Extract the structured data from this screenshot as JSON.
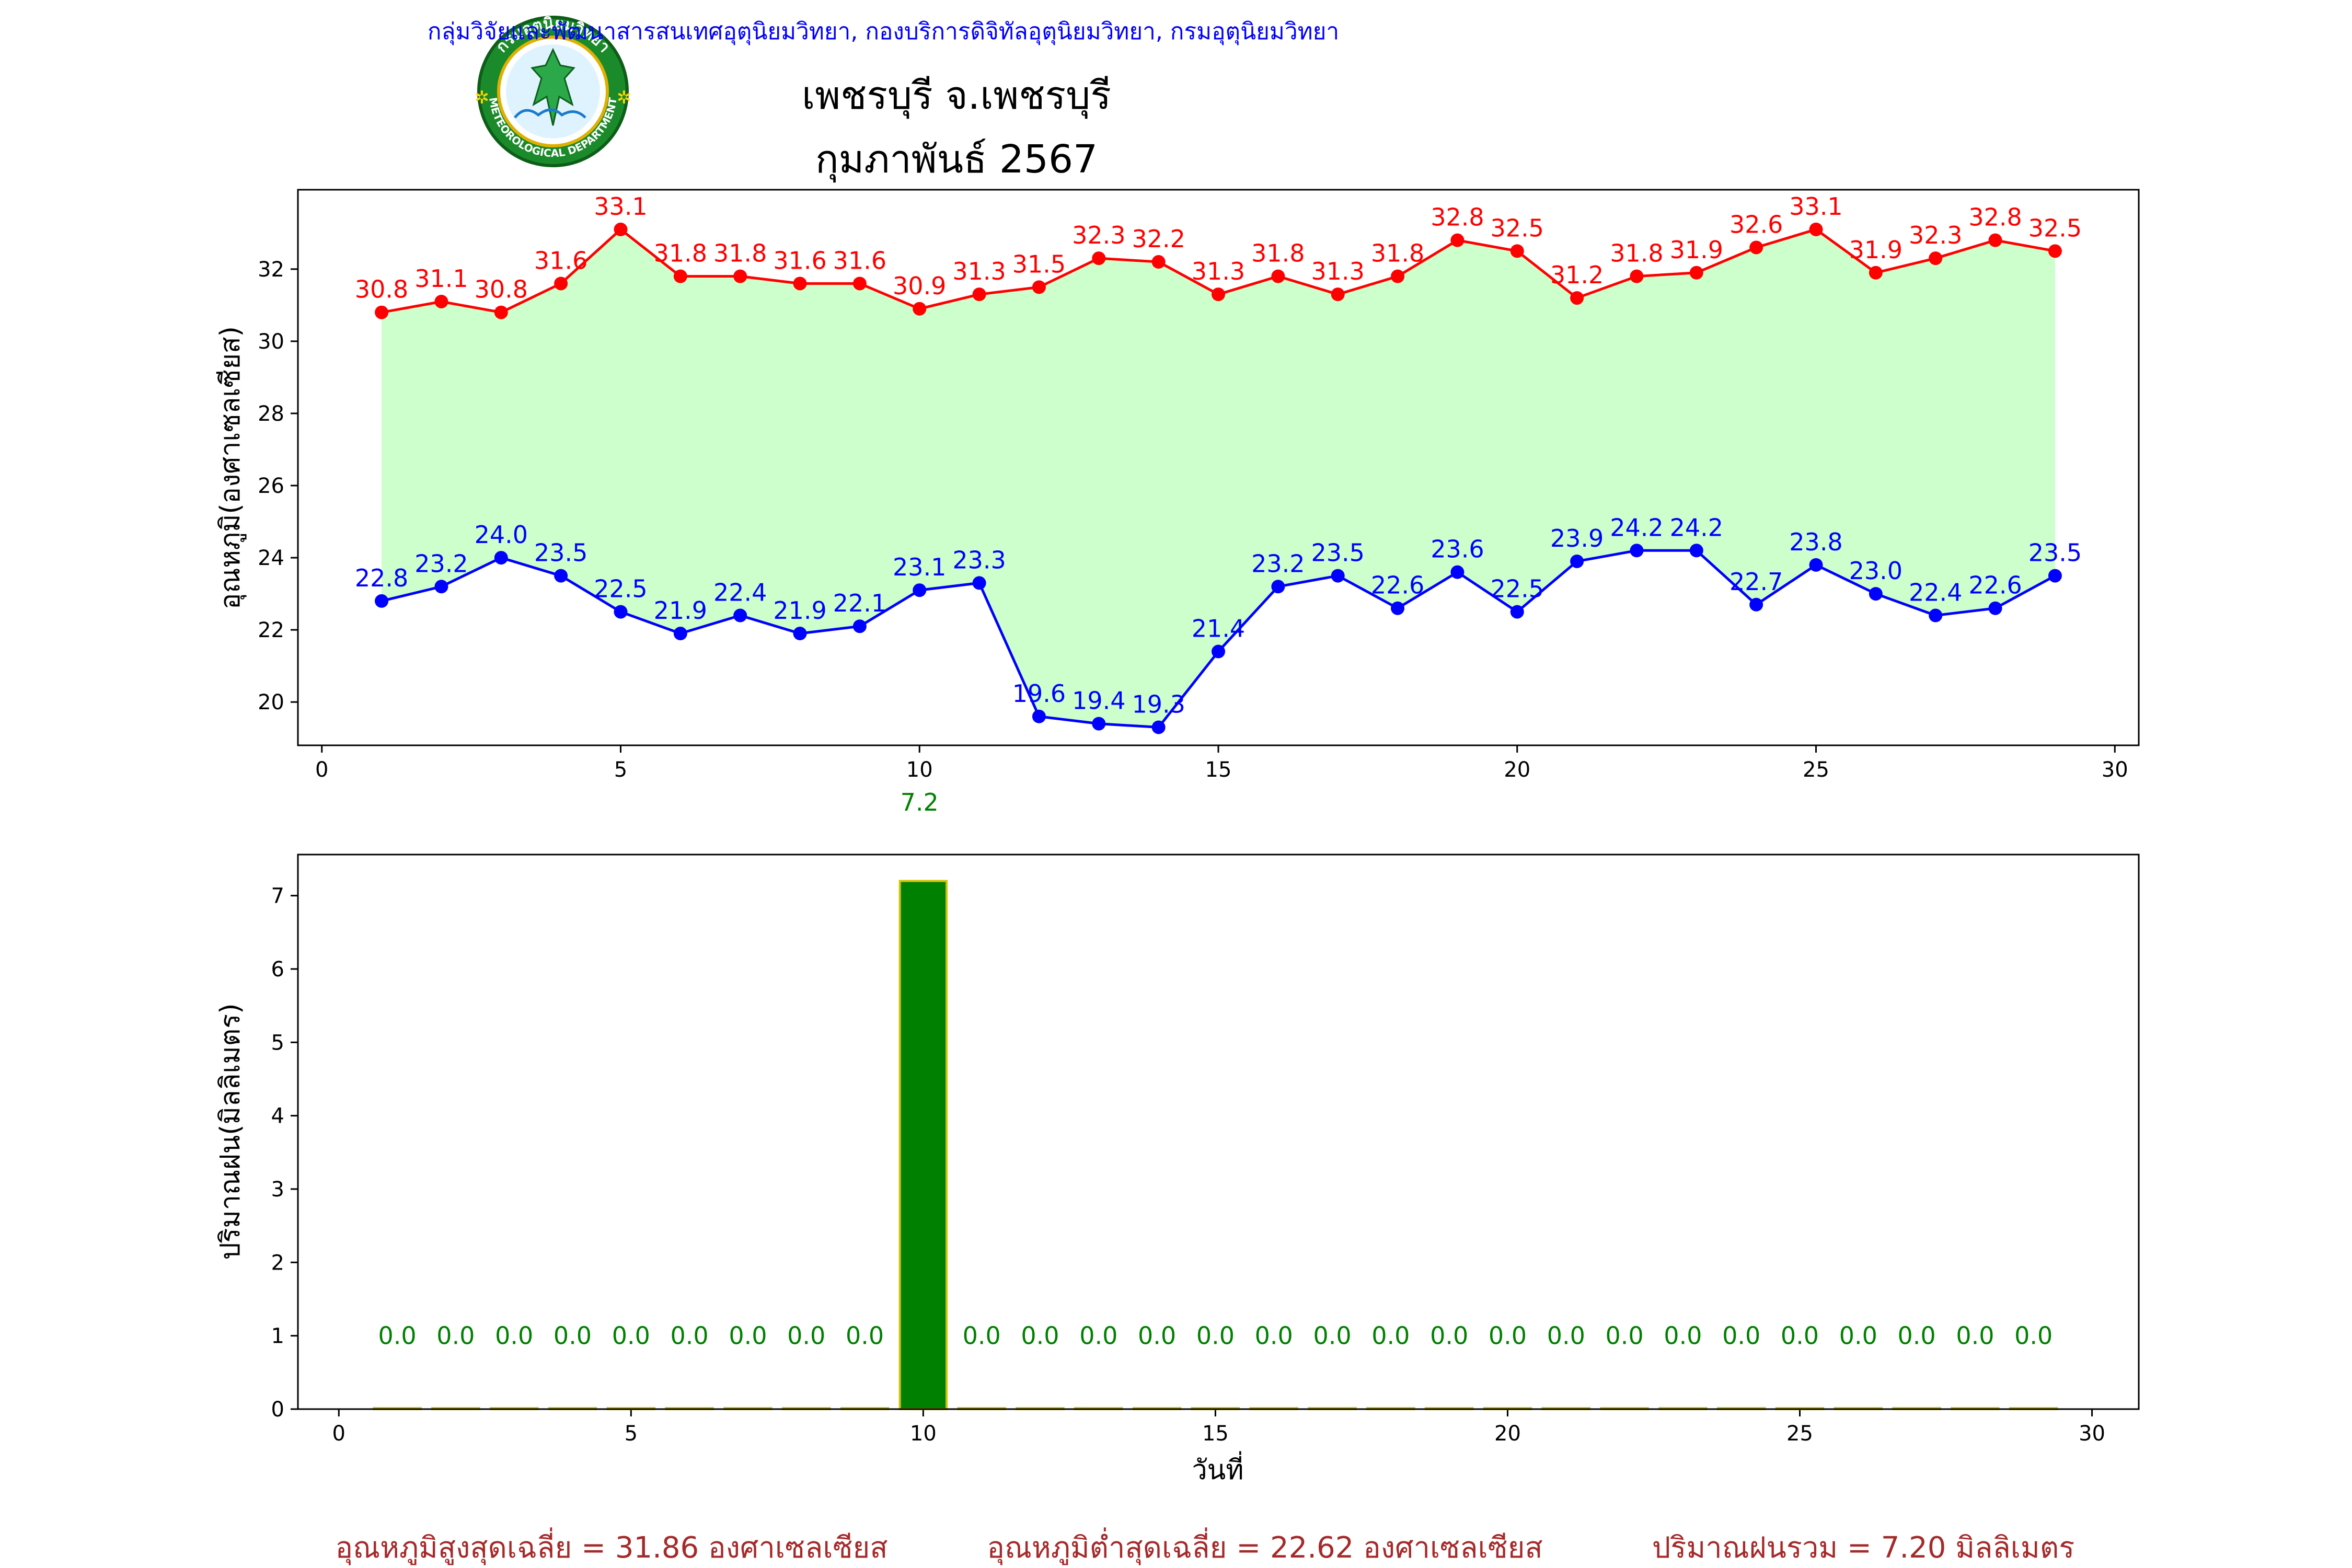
{
  "header": {
    "agency": "กลุ่มวิจัยและพัฒนาสารสนเทศอุตุนิยมวิทยา, กองบริการดิจิทัลอุตุนิยมวิทยา, กรมอุตุนิยมวิทยา",
    "station": "เพชรบุรี จ.เพชรบุรี",
    "period": "กุมภาพันธ์ 2567",
    "logo_top_text": "กรมอุตุนิยมวิทยา",
    "logo_bottom_text": "METEOROLOGICAL DEPARTMENT"
  },
  "colors": {
    "max_line": "#ff0000",
    "min_line": "#0000ff",
    "band_fill": "#ccffcc",
    "rain_bar": "#008000",
    "rain_bar_edge": "#d4c400",
    "rain_label": "#008000",
    "summary": "#a52a2a",
    "agency": "#0000ff"
  },
  "chart_data": [
    {
      "type": "line",
      "ylabel": "อุณหภูมิ(องศาเซลเซียส)",
      "xlim": [
        -0.4,
        30.4
      ],
      "ylim": [
        18.8,
        34.2
      ],
      "xticks": [
        0,
        5,
        10,
        15,
        20,
        25,
        30
      ],
      "yticks": [
        20,
        22,
        24,
        26,
        28,
        30,
        32
      ],
      "x": [
        1,
        2,
        3,
        4,
        5,
        6,
        7,
        8,
        9,
        10,
        11,
        12,
        13,
        14,
        15,
        16,
        17,
        18,
        19,
        20,
        21,
        22,
        23,
        24,
        25,
        26,
        27,
        28,
        29
      ],
      "series": [
        {
          "key": "max",
          "values": [
            30.8,
            31.1,
            30.8,
            31.6,
            33.1,
            31.8,
            31.8,
            31.6,
            31.6,
            30.9,
            31.3,
            31.5,
            32.3,
            32.2,
            31.3,
            31.8,
            31.3,
            31.8,
            32.8,
            32.5,
            31.2,
            31.8,
            31.9,
            32.6,
            33.1,
            31.9,
            32.3,
            32.8,
            32.5
          ]
        },
        {
          "key": "min",
          "values": [
            22.8,
            23.2,
            24.0,
            23.5,
            22.5,
            21.9,
            22.4,
            21.9,
            22.1,
            23.1,
            23.3,
            19.6,
            19.4,
            19.3,
            21.4,
            23.2,
            23.5,
            22.6,
            23.6,
            22.5,
            23.9,
            24.2,
            24.2,
            22.7,
            23.8,
            23.0,
            22.4,
            22.6,
            23.5
          ]
        }
      ],
      "annotations": [
        {
          "x": 10,
          "text": "7.2"
        }
      ]
    },
    {
      "type": "bar",
      "ylabel": "ปริมาณฝน(มิลลิเมตร)",
      "xlabel": "วันที่",
      "xlim": [
        -0.7,
        30.8
      ],
      "ylim": [
        0,
        7.56
      ],
      "xticks": [
        0,
        5,
        10,
        15,
        20,
        25,
        30
      ],
      "yticks": [
        0,
        1,
        2,
        3,
        4,
        5,
        6,
        7
      ],
      "x": [
        1,
        2,
        3,
        4,
        5,
        6,
        7,
        8,
        9,
        10,
        11,
        12,
        13,
        14,
        15,
        16,
        17,
        18,
        19,
        20,
        21,
        22,
        23,
        24,
        25,
        26,
        27,
        28,
        29
      ],
      "values": [
        0,
        0,
        0,
        0,
        0,
        0,
        0,
        0,
        0,
        7.2,
        0,
        0,
        0,
        0,
        0,
        0,
        0,
        0,
        0,
        0,
        0,
        0,
        0,
        0,
        0,
        0,
        0,
        0,
        0
      ],
      "bar_labels": [
        "0.0",
        "0.0",
        "0.0",
        "0.0",
        "0.0",
        "0.0",
        "0.0",
        "0.0",
        "0.0",
        "",
        "0.0",
        "0.0",
        "0.0",
        "0.0",
        "0.0",
        "0.0",
        "0.0",
        "0.0",
        "0.0",
        "0.0",
        "0.0",
        "0.0",
        "0.0",
        "0.0",
        "0.0",
        "0.0",
        "0.0",
        "0.0",
        "0.0"
      ]
    }
  ],
  "summary": {
    "avg_max": "อุณหภูมิสูงสุดเฉลี่ย = 31.86 องศาเซลเซียส",
    "avg_min": "อุณหภูมิต่ำสุดเฉลี่ย = 22.62 องศาเซลเซียส",
    "rain_total": "ปริมาณฝนรวม = 7.20 มิลลิเมตร"
  }
}
